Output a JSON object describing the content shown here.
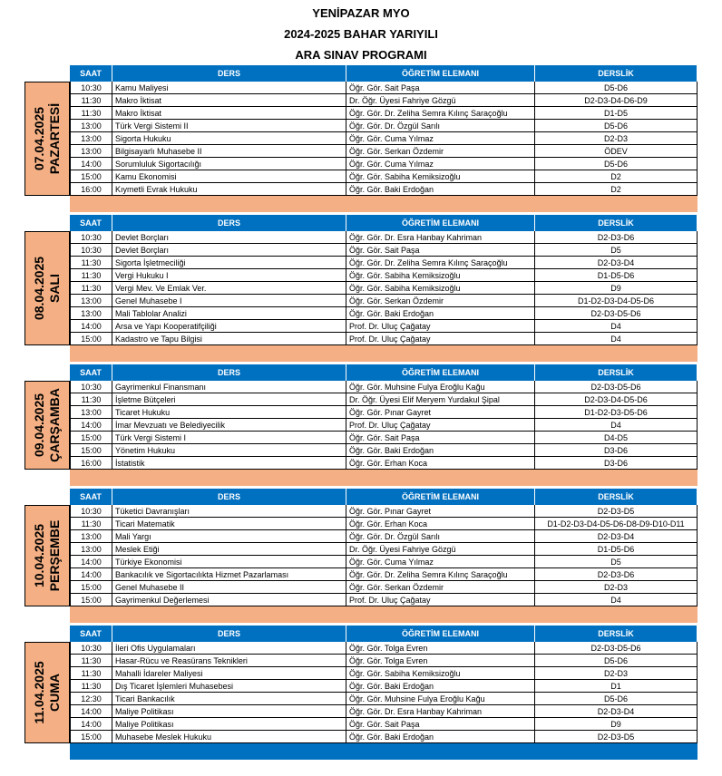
{
  "header": {
    "lines": [
      "YENİPAZAR MYO",
      "2024-2025 BAHAR YARIYILI",
      "ARA SINAV PROGRAMI"
    ]
  },
  "table": {
    "columns": [
      "SAAT",
      "DERS",
      "ÖĞRETİM ELEMANI",
      "DERSLİK"
    ],
    "days": [
      {
        "date": "07.04.2025",
        "day": "PAZARTESİ",
        "rows": [
          [
            "10:30",
            "Kamu Maliyesi",
            "Öğr. Gör. Sait Paşa",
            "D5-D6"
          ],
          [
            "11:30",
            "Makro İktisat",
            "Dr. Öğr. Üyesi Fahriye Gözgü",
            "D2-D3-D4-D6-D9"
          ],
          [
            "11:30",
            "Makro İktisat",
            "Öğr. Gör. Dr. Zeliha Semra Kılınç Saraçoğlu",
            "D1-D5"
          ],
          [
            "13:00",
            "Türk Vergi Sistemi II",
            "Öğr. Gör. Dr. Özgül Sarılı",
            "D5-D6"
          ],
          [
            "13:00",
            "Sigorta Hukuku",
            "Öğr. Gör. Cuma Yılmaz",
            "D2-D3"
          ],
          [
            "13:00",
            "Bilgisayarlı Muhasebe II",
            "Öğr. Gör. Serkan Özdemir",
            "ÖDEV"
          ],
          [
            "14:00",
            "Sorumluluk Sigortacılığı",
            "Öğr. Gör. Cuma Yılmaz",
            "D5-D6"
          ],
          [
            "15:00",
            "Kamu Ekonomisi",
            "Öğr. Gör. Sabiha Kemiksizoğlu",
            "D2"
          ],
          [
            "16:00",
            "Kıymetli Evrak Hukuku",
            "Öğr. Gör. Baki Erdoğan",
            "D2"
          ]
        ]
      },
      {
        "date": "08.04.2025",
        "day": "SALI",
        "rows": [
          [
            "10:30",
            "Devlet Borçları",
            "Öğr. Gör. Dr. Esra Hanbay Kahriman",
            "D2-D3-D6"
          ],
          [
            "10:30",
            "Devlet Borçları",
            "Öğr. Gör. Sait Paşa",
            "D5"
          ],
          [
            "11:30",
            "Sigorta İşletmeciliği",
            "Öğr. Gör. Dr. Zeliha Semra Kılınç Saraçoğlu",
            "D2-D3-D4"
          ],
          [
            "11:30",
            "Vergi Hukuku I",
            "Öğr. Gör. Sabiha Kemiksizoğlu",
            "D1-D5-D6"
          ],
          [
            "11:30",
            "Vergi Mev. Ve Emlak Ver.",
            "Öğr. Gör. Sabiha Kemiksizoğlu",
            "D9"
          ],
          [
            "13:00",
            "Genel Muhasebe I",
            "Öğr. Gör. Serkan Özdemir",
            "D1-D2-D3-D4-D5-D6"
          ],
          [
            "13:00",
            "Mali Tablolar Analizi",
            "Öğr. Gör. Baki Erdoğan",
            "D2-D3-D5-D6"
          ],
          [
            "14:00",
            "Arsa ve Yapı Kooperatifçiliği",
            "Prof. Dr. Uluç Çağatay",
            "D4"
          ],
          [
            "15:00",
            "Kadastro ve Tapu Bilgisi",
            "Prof. Dr. Uluç Çağatay",
            "D4"
          ]
        ]
      },
      {
        "date": "09.04.2025",
        "day": "ÇARŞAMBA",
        "rows": [
          [
            "10:30",
            "Gayrimenkul Finansmanı",
            "Öğr. Gör. Muhsine Fulya Eroğlu Kağu",
            "D2-D3-D5-D6"
          ],
          [
            "11:30",
            "İşletme Bütçeleri",
            "Dr. Öğr. Üyesi Elif Meryem Yurdakul Şipal",
            "D2-D3-D4-D5-D6"
          ],
          [
            "13:00",
            "Ticaret Hukuku",
            "Öğr. Gör. Pınar Gayret",
            "D1-D2-D3-D5-D6"
          ],
          [
            "14:00",
            "İmar Mevzuatı ve Belediyecilik",
            "Prof. Dr. Uluç Çağatay",
            "D4"
          ],
          [
            "15:00",
            "Türk Vergi Sistemi I",
            "Öğr. Gör. Sait Paşa",
            "D4-D5"
          ],
          [
            "15:00",
            "Yönetim Hukuku",
            "Öğr. Gör. Baki Erdoğan",
            "D3-D6"
          ],
          [
            "16:00",
            "İstatistik",
            "Öğr. Gör. Erhan Koca",
            "D3-D6"
          ]
        ]
      },
      {
        "date": "10.04.2025",
        "day": "PERŞEMBE",
        "rows": [
          [
            "10:30",
            "Tüketici Davranışları",
            "Öğr. Gör. Pınar Gayret",
            "D2-D3-D5"
          ],
          [
            "11:30",
            "Ticari Matematik",
            "Öğr. Gör. Erhan Koca",
            "D1-D2-D3-D4-D5-D6-D8-D9-D10-D11"
          ],
          [
            "13:00",
            "Mali Yargı",
            "Öğr. Gör. Dr. Özgül Sarılı",
            "D2-D3-D4"
          ],
          [
            "13:00",
            "Meslek Etiği",
            "Dr. Öğr. Üyesi Fahriye Gözgü",
            "D1-D5-D6"
          ],
          [
            "14:00",
            "Türkiye Ekonomisi",
            "Öğr. Gör. Cuma Yılmaz",
            "D5"
          ],
          [
            "14:00",
            "Bankacılık ve Sigortacılıkta Hizmet Pazarlaması",
            "Öğr. Gör. Dr. Zeliha Semra Kılınç Saraçoğlu",
            "D2-D3-D6"
          ],
          [
            "15:00",
            "Genel Muhasebe II",
            "Öğr. Gör. Serkan Özdemir",
            "D2-D3"
          ],
          [
            "15:00",
            "Gayrimenkul Değerlemesi",
            "Prof. Dr. Uluç Çağatay",
            "D4"
          ]
        ]
      },
      {
        "date": "11.04.2025",
        "day": "CUMA",
        "rows": [
          [
            "10:30",
            "İleri Ofis Uygulamaları",
            "Öğr. Gör. Tolga Evren",
            "D2-D3-D5-D6"
          ],
          [
            "11:30",
            "Hasar-Rücu ve Reasürans Teknikleri",
            "Öğr. Gör. Tolga Evren",
            "D5-D6"
          ],
          [
            "11:30",
            "Mahalli İdareler Maliyesi",
            "Öğr. Gör. Sabiha Kemiksizoğlu",
            "D2-D3"
          ],
          [
            "11:30",
            "Dış Ticaret İşlemleri Muhasebesi",
            "Öğr. Gör. Baki Erdoğan",
            "D1"
          ],
          [
            "12:30",
            "Ticari Bankacılık",
            "Öğr. Gör. Muhsine Fulya Eroğlu Kağu",
            "D5-D6"
          ],
          [
            "14:00",
            "Maliye Politikası",
            "Öğr. Gör. Dr. Esra Hanbay Kahriman",
            "D2-D3-D4"
          ],
          [
            "14:00",
            "Maliye Politikası",
            "Öğr. Gör. Sait Paşa",
            "D9"
          ],
          [
            "15:00",
            "Muhasebe Meslek Hukuku",
            "Öğr. Gör. Baki Erdoğan",
            "D2-D3-D5"
          ]
        ]
      }
    ]
  }
}
